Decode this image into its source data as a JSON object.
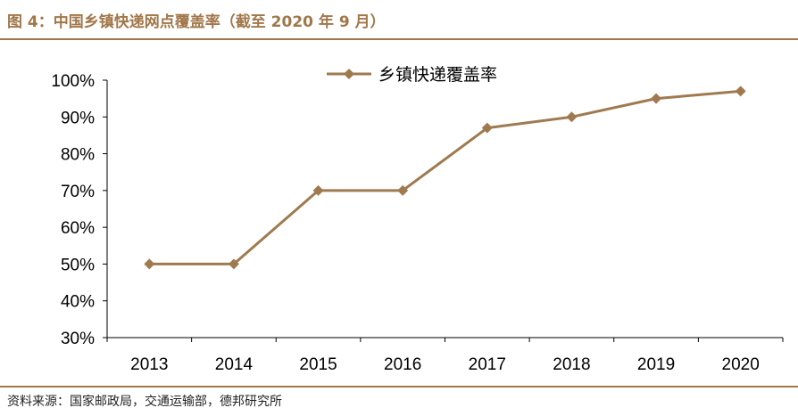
{
  "figure": {
    "title": "图 4：中国乡镇快递网点覆盖率（截至 2020 年 9 月）",
    "source": "资料来源：国家邮政局，交通运输部，德邦研究所"
  },
  "colors": {
    "accent": "#a1774a",
    "series": "#a07a4f"
  },
  "chart_data": {
    "type": "line",
    "title": "",
    "xlabel": "",
    "ylabel": "",
    "categories": [
      "2013",
      "2014",
      "2015",
      "2016",
      "2017",
      "2018",
      "2019",
      "2020"
    ],
    "series": [
      {
        "name": "乡镇快递覆盖率",
        "values": [
          50,
          50,
          70,
          70,
          87,
          90,
          95,
          97
        ],
        "marker": "diamond"
      }
    ],
    "ylim": [
      30,
      100
    ],
    "yticks": [
      "30%",
      "40%",
      "50%",
      "60%",
      "70%",
      "80%",
      "90%",
      "100%"
    ],
    "grid": false,
    "legend_position": "top-center"
  }
}
